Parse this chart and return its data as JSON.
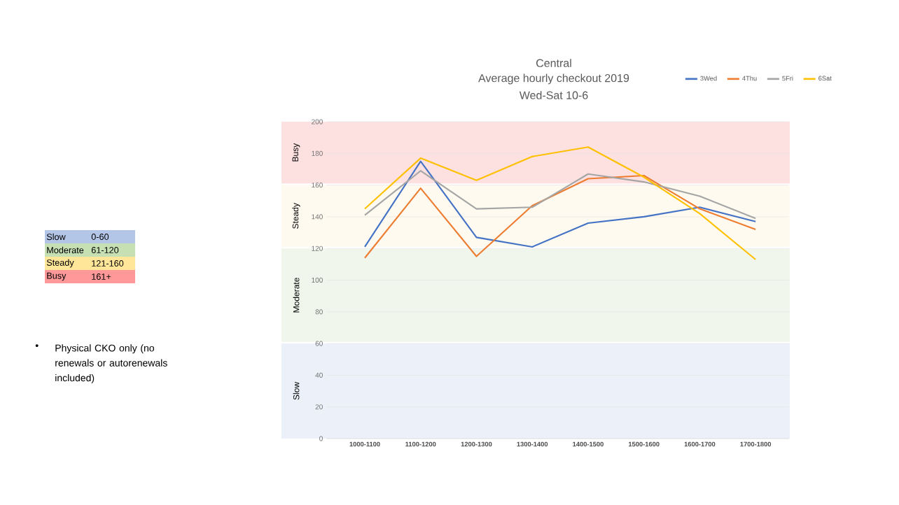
{
  "chart_data": {
    "type": "line",
    "title": "Central",
    "subtitle": "Average hourly checkout 2019",
    "categories": [
      "1000-1100",
      "1100-1200",
      "1200-1300",
      "1300-1400",
      "1400-1500",
      "1500-1600",
      "1600-1700",
      "1700-1800"
    ],
    "series": [
      {
        "name": "3Wed",
        "color": "#4472c4",
        "values": [
          121,
          175,
          127,
          121,
          136,
          140,
          146,
          137
        ]
      },
      {
        "name": "4Thu",
        "color": "#ed7d31",
        "values": [
          114,
          158,
          115,
          147,
          164,
          166,
          145,
          132
        ]
      },
      {
        "name": "5Fri",
        "color": "#a5a5a5",
        "values": [
          141,
          169,
          145,
          146,
          167,
          162,
          153,
          139
        ]
      },
      {
        "name": "6Sat",
        "color": "#ffc000",
        "values": [
          145,
          177,
          163,
          178,
          184,
          165,
          142,
          113
        ]
      }
    ],
    "ylim": [
      0,
      200
    ],
    "yticks": [
      0,
      20,
      40,
      60,
      80,
      100,
      120,
      140,
      160,
      180,
      200
    ],
    "grid": "y",
    "legend": "top right",
    "marker": "none",
    "line_style": "solid",
    "bands": [
      {
        "axis": "y",
        "from": 0,
        "to": 60,
        "label": "Slow",
        "color": "#ecf0f8"
      },
      {
        "axis": "y",
        "from": 61,
        "to": 120,
        "label": "Moderate",
        "color": "#f0f6ec"
      },
      {
        "axis": "y",
        "from": 121,
        "to": 160,
        "label": "Steady",
        "color": "#fefaf0"
      },
      {
        "axis": "y",
        "from": 161,
        "to": 200,
        "label": "Busy",
        "color": "#fde0e0"
      }
    ],
    "annotations": [
      "Wed-Sat 10-6",
      "Slow",
      "0-60",
      "Moderate",
      "61-120",
      "Steady",
      "121-160",
      "Busy",
      "161+",
      "•",
      "Physical CKO only (no renewals or autorenewals included)"
    ]
  }
}
